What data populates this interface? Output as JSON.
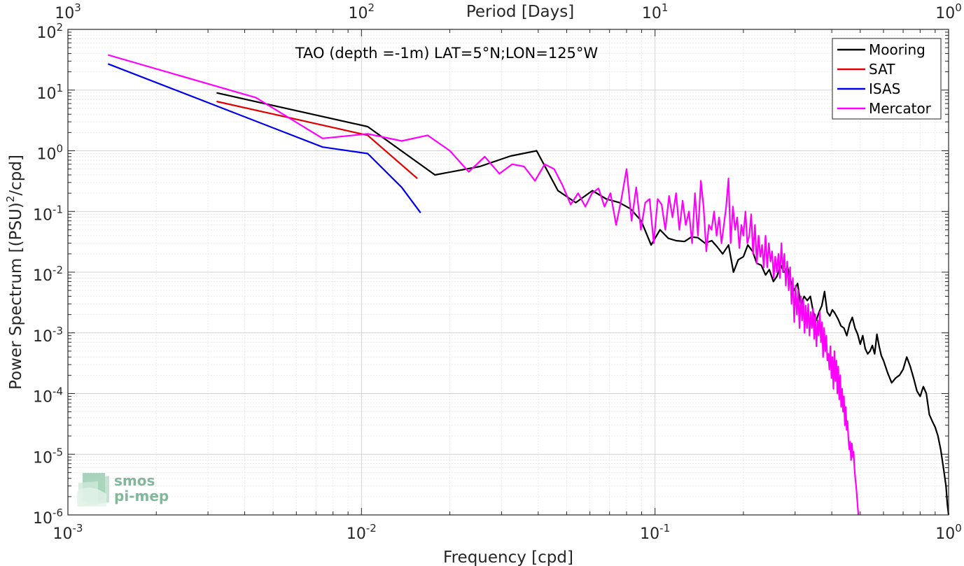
{
  "chart_data": {
    "type": "line",
    "title": "TAO (depth =-1m) LAT=5°N;LON=125°W",
    "xlabel": "Frequency [cpd]",
    "ylabel": "Power Spectrum [(PSU)²/cpd]",
    "ylabel_base": "Power Spectrum [(PSU)",
    "ylabel_sup": "2",
    "ylabel_tail": "/cpd]",
    "x2label": "Period [Days]",
    "xscale": "log",
    "yscale": "log",
    "xlim": [
      0.001,
      1
    ],
    "ylim": [
      1e-06,
      100
    ],
    "grid": true,
    "legend_position": "top-right",
    "x_ticks": [
      {
        "value": 0.001,
        "base": "10",
        "exp": "-3"
      },
      {
        "value": 0.01,
        "base": "10",
        "exp": "-2"
      },
      {
        "value": 0.1,
        "base": "10",
        "exp": "-1"
      },
      {
        "value": 1,
        "base": "10",
        "exp": "0"
      }
    ],
    "y_ticks": [
      {
        "value": 1e-06,
        "base": "10",
        "exp": "-6"
      },
      {
        "value": 1e-05,
        "base": "10",
        "exp": "-5"
      },
      {
        "value": 0.0001,
        "base": "10",
        "exp": "-4"
      },
      {
        "value": 0.001,
        "base": "10",
        "exp": "-3"
      },
      {
        "value": 0.01,
        "base": "10",
        "exp": "-2"
      },
      {
        "value": 0.1,
        "base": "10",
        "exp": "-1"
      },
      {
        "value": 1,
        "base": "10",
        "exp": "0"
      },
      {
        "value": 10,
        "base": "10",
        "exp": "1"
      },
      {
        "value": 100,
        "base": "10",
        "exp": "2"
      }
    ],
    "x2_ticks": [
      {
        "value": 1000,
        "base": "10",
        "exp": "3"
      },
      {
        "value": 100,
        "base": "10",
        "exp": "2"
      },
      {
        "value": 10,
        "base": "10",
        "exp": "1"
      },
      {
        "value": 1,
        "base": "10",
        "exp": "0"
      }
    ],
    "series": [
      {
        "name": "Mooring",
        "color": "#000000",
        "points": [
          [
            0.00321,
            9.0
          ],
          [
            0.0105,
            2.5
          ],
          [
            0.0178,
            0.4
          ],
          [
            0.0253,
            0.55
          ],
          [
            0.0322,
            0.82
          ],
          [
            0.0395,
            1.0
          ],
          [
            0.0467,
            0.22
          ],
          [
            0.0537,
            0.14
          ],
          [
            0.0612,
            0.22
          ],
          [
            0.0683,
            0.16
          ],
          [
            0.0756,
            0.14
          ],
          [
            0.0826,
            0.11
          ],
          [
            0.0897,
            0.07
          ],
          [
            0.097,
            0.028
          ],
          [
            0.104,
            0.05
          ],
          [
            0.111,
            0.036
          ],
          [
            0.118,
            0.033
          ],
          [
            0.126,
            0.032
          ],
          [
            0.133,
            0.038
          ],
          [
            0.14,
            0.037
          ],
          [
            0.148,
            0.03
          ],
          [
            0.156,
            0.033
          ],
          [
            0.163,
            0.026
          ],
          [
            0.17,
            0.02
          ],
          [
            0.178,
            0.028
          ],
          [
            0.185,
            0.01
          ],
          [
            0.192,
            0.016
          ],
          [
            0.2,
            0.018
          ],
          [
            0.207,
            0.028
          ],
          [
            0.215,
            0.022
          ],
          [
            0.222,
            0.014
          ],
          [
            0.23,
            0.013
          ],
          [
            0.238,
            0.009
          ],
          [
            0.245,
            0.011
          ],
          [
            0.253,
            0.007
          ],
          [
            0.26,
            0.0085
          ],
          [
            0.268,
            0.013
          ],
          [
            0.275,
            0.01
          ],
          [
            0.283,
            0.012
          ],
          [
            0.29,
            0.0072
          ],
          [
            0.298,
            0.005
          ],
          [
            0.306,
            0.0065
          ],
          [
            0.314,
            0.0028
          ],
          [
            0.322,
            0.004
          ],
          [
            0.33,
            0.0034
          ],
          [
            0.338,
            0.004
          ],
          [
            0.346,
            0.0022
          ],
          [
            0.354,
            0.0016
          ],
          [
            0.362,
            0.0022
          ],
          [
            0.37,
            0.0028
          ],
          [
            0.378,
            0.0048
          ],
          [
            0.386,
            0.0022
          ],
          [
            0.394,
            0.0019
          ],
          [
            0.402,
            0.0024
          ],
          [
            0.41,
            0.0021
          ],
          [
            0.42,
            0.0017
          ],
          [
            0.43,
            0.0013
          ],
          [
            0.44,
            0.0012
          ],
          [
            0.45,
            0.0009
          ],
          [
            0.46,
            0.0014
          ],
          [
            0.47,
            0.0018
          ],
          [
            0.48,
            0.0012
          ],
          [
            0.49,
            0.00095
          ],
          [
            0.5,
            0.00065
          ],
          [
            0.51,
            0.0009
          ],
          [
            0.52,
            0.00055
          ],
          [
            0.53,
            0.00045
          ],
          [
            0.54,
            0.0005
          ],
          [
            0.55,
            0.00062
          ],
          [
            0.56,
            0.00045
          ],
          [
            0.57,
            0.00095
          ],
          [
            0.58,
            0.0006
          ],
          [
            0.59,
            0.00042
          ],
          [
            0.6,
            0.00035
          ],
          [
            0.62,
            0.00022
          ],
          [
            0.64,
            0.00015
          ],
          [
            0.66,
            0.00018
          ],
          [
            0.68,
            0.0002
          ],
          [
            0.7,
            0.00025
          ],
          [
            0.72,
            0.0004
          ],
          [
            0.74,
            0.00028
          ],
          [
            0.76,
            0.00018
          ],
          [
            0.78,
            0.00011
          ],
          [
            0.8,
            9e-05
          ],
          [
            0.82,
            0.00013
          ],
          [
            0.84,
            0.0001
          ],
          [
            0.86,
            4.5e-05
          ],
          [
            0.88,
            3.5e-05
          ],
          [
            0.9,
            2.8e-05
          ],
          [
            0.92,
            2e-05
          ],
          [
            0.94,
            1.2e-05
          ],
          [
            0.96,
            6e-06
          ],
          [
            0.98,
            3e-06
          ],
          [
            0.99,
            1.5e-06
          ],
          [
            1.0,
            1e-06
          ]
        ]
      },
      {
        "name": "SAT",
        "color": "#e00000",
        "points": [
          [
            0.00321,
            6.5
          ],
          [
            0.0105,
            1.8
          ],
          [
            0.0155,
            0.35
          ]
        ]
      },
      {
        "name": "ISAS",
        "color": "#0000ee",
        "points": [
          [
            0.00137,
            27
          ],
          [
            0.00737,
            1.15
          ],
          [
            0.0105,
            0.9
          ],
          [
            0.0137,
            0.25
          ],
          [
            0.0159,
            0.095
          ]
        ]
      },
      {
        "name": "Mercator",
        "color": "#ff00ff",
        "points": [
          [
            0.00137,
            38
          ],
          [
            0.00437,
            7.5
          ],
          [
            0.00737,
            1.6
          ],
          [
            0.0105,
            1.9
          ],
          [
            0.0137,
            1.45
          ],
          [
            0.0168,
            1.8
          ],
          [
            0.02,
            1.0
          ],
          [
            0.0232,
            0.45
          ],
          [
            0.0263,
            0.8
          ],
          [
            0.0295,
            0.42
          ],
          [
            0.0326,
            0.6
          ],
          [
            0.0358,
            0.55
          ],
          [
            0.039,
            0.32
          ],
          [
            0.0421,
            0.6
          ],
          [
            0.0453,
            0.5
          ],
          [
            0.0484,
            0.27
          ],
          [
            0.0516,
            0.13
          ],
          [
            0.0547,
            0.2
          ],
          [
            0.0579,
            0.12
          ],
          [
            0.061,
            0.2
          ],
          [
            0.0642,
            0.24
          ],
          [
            0.0673,
            0.12
          ],
          [
            0.0705,
            0.2
          ],
          [
            0.0737,
            0.06
          ],
          [
            0.0768,
            0.16
          ],
          [
            0.08,
            0.5
          ],
          [
            0.0832,
            0.07
          ],
          [
            0.0863,
            0.25
          ],
          [
            0.0895,
            0.05
          ],
          [
            0.0926,
            0.14
          ],
          [
            0.0958,
            0.16
          ],
          [
            0.099,
            0.03
          ],
          [
            0.1021,
            0.16
          ],
          [
            0.1053,
            0.13
          ],
          [
            0.1084,
            0.05
          ],
          [
            0.1116,
            0.18
          ],
          [
            0.1147,
            0.08
          ],
          [
            0.1179,
            0.2
          ],
          [
            0.121,
            0.05
          ],
          [
            0.1242,
            0.15
          ],
          [
            0.1273,
            0.06
          ],
          [
            0.1305,
            0.1
          ],
          [
            0.1337,
            0.03
          ],
          [
            0.1368,
            0.2
          ],
          [
            0.14,
            0.04
          ],
          [
            0.1432,
            0.32
          ],
          [
            0.1463,
            0.12
          ],
          [
            0.1495,
            0.022
          ],
          [
            0.1526,
            0.06
          ],
          [
            0.1558,
            0.05
          ],
          [
            0.1589,
            0.1
          ],
          [
            0.1621,
            0.04
          ],
          [
            0.1653,
            0.08
          ],
          [
            0.1684,
            0.03
          ],
          [
            0.1716,
            0.06
          ],
          [
            0.1747,
            0.12
          ],
          [
            0.1779,
            0.35
          ],
          [
            0.181,
            0.03
          ],
          [
            0.1842,
            0.12
          ],
          [
            0.1874,
            0.05
          ],
          [
            0.1905,
            0.08
          ],
          [
            0.1937,
            0.025
          ],
          [
            0.1968,
            0.06
          ],
          [
            0.2,
            0.04
          ],
          [
            0.2032,
            0.1
          ],
          [
            0.2063,
            0.03
          ],
          [
            0.2095,
            0.04
          ],
          [
            0.2126,
            0.09
          ],
          [
            0.2158,
            0.02
          ],
          [
            0.219,
            0.06
          ],
          [
            0.2221,
            0.014
          ],
          [
            0.2253,
            0.04
          ],
          [
            0.2284,
            0.018
          ],
          [
            0.2316,
            0.028
          ],
          [
            0.2347,
            0.012
          ],
          [
            0.2379,
            0.04
          ],
          [
            0.241,
            0.012
          ],
          [
            0.2442,
            0.03
          ],
          [
            0.2474,
            0.015
          ],
          [
            0.2505,
            0.022
          ],
          [
            0.2537,
            0.008
          ],
          [
            0.2568,
            0.018
          ],
          [
            0.26,
            0.01
          ],
          [
            0.2632,
            0.02
          ],
          [
            0.2663,
            0.008
          ],
          [
            0.2695,
            0.03
          ],
          [
            0.2726,
            0.01
          ],
          [
            0.2758,
            0.02
          ],
          [
            0.279,
            0.006
          ],
          [
            0.2821,
            0.015
          ],
          [
            0.2853,
            0.005
          ],
          [
            0.2884,
            0.012
          ],
          [
            0.2916,
            0.003
          ],
          [
            0.2947,
            0.008
          ],
          [
            0.2979,
            0.0015
          ],
          [
            0.301,
            0.006
          ],
          [
            0.3042,
            0.002
          ],
          [
            0.3074,
            0.005
          ],
          [
            0.3105,
            0.0012
          ],
          [
            0.3137,
            0.004
          ],
          [
            0.3168,
            0.0016
          ],
          [
            0.32,
            0.0035
          ],
          [
            0.3232,
            0.001
          ],
          [
            0.3263,
            0.0028
          ],
          [
            0.3295,
            0.0012
          ],
          [
            0.3326,
            0.003
          ],
          [
            0.3358,
            0.0009
          ],
          [
            0.339,
            0.0022
          ],
          [
            0.3421,
            0.0012
          ],
          [
            0.3453,
            0.0025
          ],
          [
            0.3484,
            0.0008
          ],
          [
            0.3516,
            0.002
          ],
          [
            0.3547,
            0.0006
          ],
          [
            0.3579,
            0.0016
          ],
          [
            0.361,
            0.0009
          ],
          [
            0.3642,
            0.0022
          ],
          [
            0.3674,
            0.0007
          ],
          [
            0.3705,
            0.0015
          ],
          [
            0.3737,
            0.0004
          ],
          [
            0.3768,
            0.0012
          ],
          [
            0.38,
            0.0005
          ],
          [
            0.3832,
            0.0009
          ],
          [
            0.3863,
            0.00035
          ],
          [
            0.3895,
            0.00045
          ],
          [
            0.3926,
            0.00025
          ],
          [
            0.3958,
            0.0006
          ],
          [
            0.399,
            0.00018
          ],
          [
            0.4021,
            0.0004
          ],
          [
            0.4053,
            0.00012
          ],
          [
            0.4084,
            0.0005
          ],
          [
            0.4116,
            0.00016
          ],
          [
            0.4147,
            0.00035
          ],
          [
            0.4179,
            0.0001
          ],
          [
            0.421,
            0.00028
          ],
          [
            0.4242,
            8e-05
          ],
          [
            0.4274,
            0.0002
          ],
          [
            0.4305,
            6e-05
          ],
          [
            0.4337,
            0.00012
          ],
          [
            0.4368,
            5e-05
          ],
          [
            0.44,
            9e-05
          ],
          [
            0.4432,
            3e-05
          ],
          [
            0.4463,
            6e-05
          ],
          [
            0.4495,
            2.5e-05
          ],
          [
            0.4526,
            3.5e-05
          ],
          [
            0.4558,
            1.8e-05
          ],
          [
            0.4589,
            1.2e-05
          ],
          [
            0.4621,
            1.6e-05
          ],
          [
            0.4653,
            8e-06
          ],
          [
            0.4684,
            1.5e-05
          ],
          [
            0.4716,
            9e-06
          ],
          [
            0.4747,
            1.1e-05
          ],
          [
            0.4779,
            6e-06
          ],
          [
            0.481,
            4e-06
          ],
          [
            0.4842,
            3e-06
          ],
          [
            0.4874,
            2e-06
          ],
          [
            0.4905,
            1.3e-06
          ],
          [
            0.493,
            1e-06
          ]
        ]
      }
    ]
  },
  "logo": {
    "line1": "smos",
    "line2": "pi-mep"
  }
}
